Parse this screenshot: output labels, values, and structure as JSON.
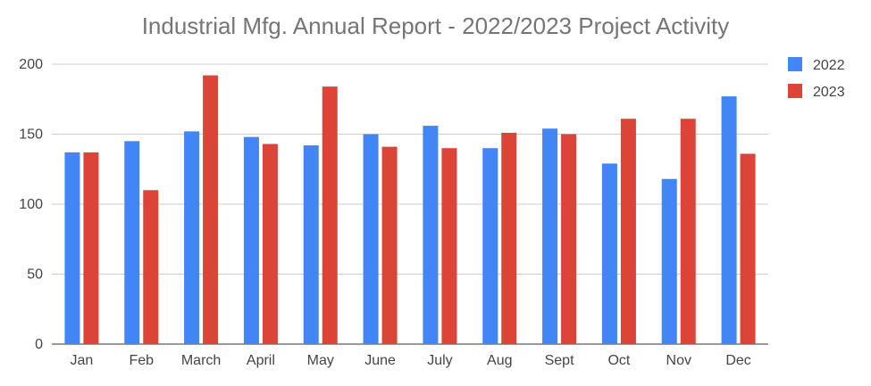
{
  "chart_data": {
    "type": "bar",
    "title": "Industrial Mfg. Annual Report - 2022/2023 Project Activity",
    "xlabel": "",
    "ylabel": "",
    "categories": [
      "Jan",
      "Feb",
      "March",
      "April",
      "May",
      "June",
      "July",
      "Aug",
      "Sept",
      "Oct",
      "Nov",
      "Dec"
    ],
    "series": [
      {
        "name": "2022",
        "color": "#4285f4",
        "values": [
          137,
          145,
          152,
          148,
          142,
          150,
          156,
          140,
          154,
          129,
          118,
          177
        ]
      },
      {
        "name": "2023",
        "color": "#db4437",
        "values": [
          137,
          110,
          192,
          143,
          184,
          141,
          140,
          151,
          150,
          161,
          161,
          136
        ]
      }
    ],
    "ylim": [
      0,
      200
    ],
    "yticks": [
      0,
      50,
      100,
      150,
      200
    ],
    "grid": true,
    "legend_position": "right"
  }
}
